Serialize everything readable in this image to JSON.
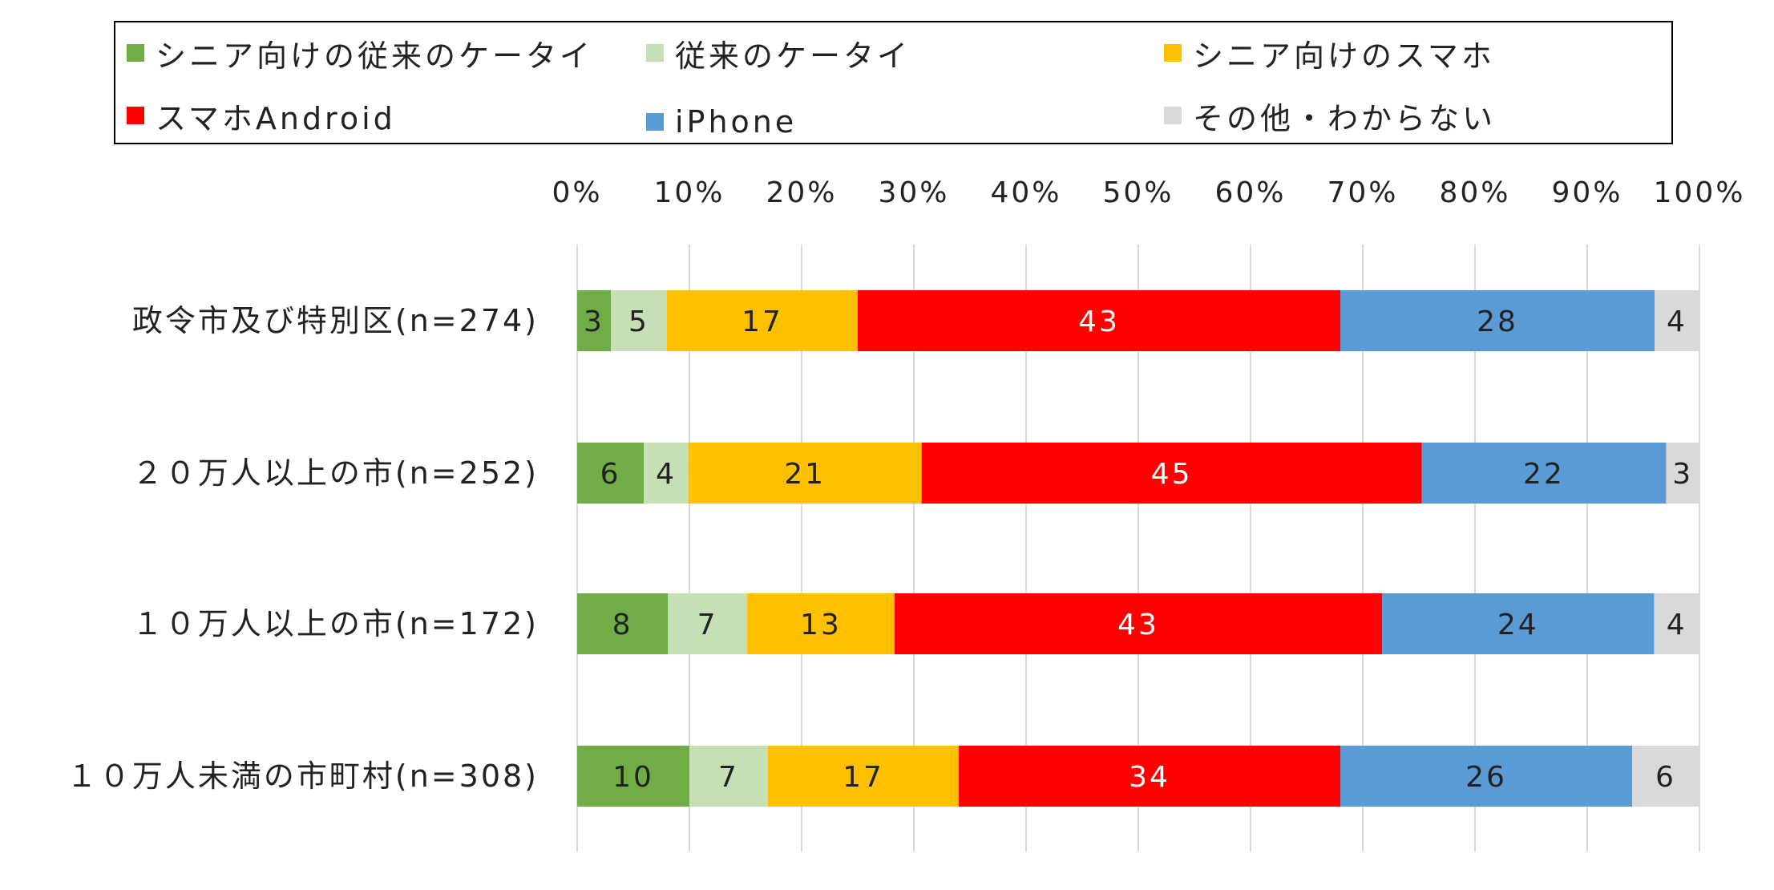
{
  "chart_data": {
    "type": "bar",
    "orientation": "horizontal",
    "stacked": true,
    "percent_stacked": true,
    "categories": [
      "政令市及び特別区(n=274)",
      "２０万人以上の市(n=252)",
      "１０万人以上の市(n=172)",
      "１０万人未満の市町村(n=308)"
    ],
    "series": [
      {
        "name": "シニア向けの従来のケータイ",
        "color": "#70AD47",
        "label_color": "#222222",
        "values": [
          3,
          6,
          8,
          10
        ]
      },
      {
        "name": "従来のケータイ",
        "color": "#C5E0B4",
        "label_color": "#222222",
        "values": [
          5,
          4,
          7,
          7
        ]
      },
      {
        "name": "シニア向けのスマホ",
        "color": "#FFC000",
        "label_color": "#222222",
        "values": [
          17,
          21,
          13,
          17
        ]
      },
      {
        "name": "スマホAndroid",
        "color": "#FF0000",
        "label_color": "#FFFFFF",
        "values": [
          43,
          45,
          43,
          34
        ]
      },
      {
        "name": "iPhone",
        "color": "#5B9BD5",
        "label_color": "#222222",
        "values": [
          28,
          22,
          24,
          26
        ]
      },
      {
        "name": "その他・わからない",
        "color": "#D9D9D9",
        "label_color": "#222222",
        "values": [
          4,
          3,
          4,
          6
        ]
      }
    ],
    "xlim": [
      0,
      100
    ],
    "x_ticks": [
      "0%",
      "10%",
      "20%",
      "30%",
      "40%",
      "50%",
      "60%",
      "70%",
      "80%",
      "90%",
      "100%"
    ],
    "xaxis_position": "top",
    "grid": true,
    "legend_position": "top",
    "data_labels": true
  }
}
